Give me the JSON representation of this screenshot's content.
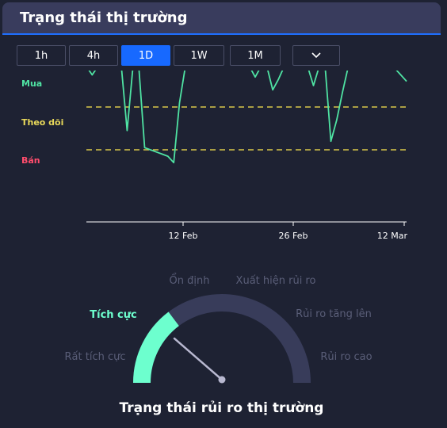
{
  "header": {
    "title": "Trạng thái thị trường"
  },
  "timeframes": [
    {
      "label": "1h",
      "active": false
    },
    {
      "label": "4h",
      "active": false
    },
    {
      "label": "1D",
      "active": true
    },
    {
      "label": "1W",
      "active": false
    },
    {
      "label": "1M",
      "active": false
    }
  ],
  "dropdown": {
    "icon": "chevron-down-icon"
  },
  "chart_data": {
    "type": "line",
    "levels": [
      {
        "label": "Mua",
        "color": "#4fe3a3"
      },
      {
        "label": "Theo dõi",
        "color": "#e8d85a"
      },
      {
        "label": "Bán",
        "color": "#ff4d6d"
      }
    ],
    "x_ticks": [
      "12 Feb",
      "26 Feb",
      "12 Mar"
    ],
    "series": [
      {
        "color": "#4fe3a3",
        "values": [
          0.95,
          0.75,
          0.95,
          0.95,
          0.95,
          0.95,
          0.95,
          -0.55,
          0.95,
          0.95,
          -0.95,
          -1.0,
          -1.05,
          -1.1,
          -1.15,
          -1.3,
          0.1,
          0.95,
          0.95,
          0.95,
          0.95,
          0.95,
          0.95,
          0.95,
          0.95,
          0.95,
          0.95,
          0.95,
          0.95,
          0.7,
          0.95,
          0.95,
          0.4,
          0.65,
          0.95,
          0.95,
          0.95,
          0.95,
          0.95,
          0.5,
          0.95,
          0.95,
          -0.8,
          -0.3,
          0.35,
          0.95,
          0.95,
          0.95,
          0.95,
          0.95,
          0.95,
          0.95,
          0.95,
          0.9,
          0.75,
          0.6
        ]
      }
    ],
    "guide_lines": [
      0.0,
      -1.0
    ],
    "line_color": "#d8c84a"
  },
  "gauge": {
    "title": "Trạng thái rủi ro thị trường",
    "labels": [
      "Rất tích cực",
      "Tích cực",
      "Ổn định",
      "Xuất hiện rủi ro",
      "Rủi ro tăng lên",
      "Rủi ro cao"
    ],
    "active_index": 1,
    "active_color": "#6dffce",
    "inactive_label_color": "#5a5e78",
    "track_color": "#383c5a",
    "needle_color": "#b8b8d0"
  }
}
